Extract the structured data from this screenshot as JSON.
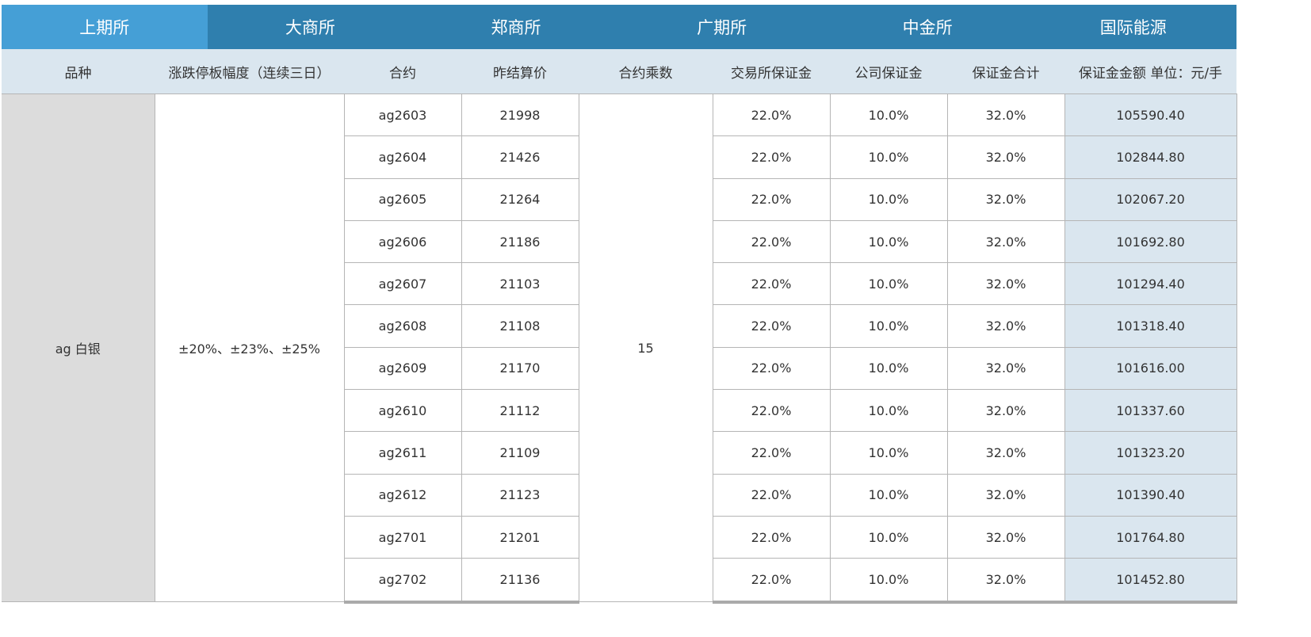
{
  "tabs": [
    {
      "label": "上期所",
      "active": true
    },
    {
      "label": "大商所",
      "active": false
    },
    {
      "label": "郑商所",
      "active": false
    },
    {
      "label": "广期所",
      "active": false
    },
    {
      "label": "中金所",
      "active": false
    },
    {
      "label": "国际能源",
      "active": false
    }
  ],
  "columns": [
    "品种",
    "涨跌停板幅度（连续三日）",
    "合约",
    "昨结算价",
    "合约乘数",
    "交易所保证金",
    "公司保证金",
    "保证金合计",
    "保证金金额 单位：元/手"
  ],
  "variety": "ag 白银",
  "limit": "±20%、±23%、±25%",
  "multiplier": "15",
  "rows": [
    {
      "contract": "ag2603",
      "settle": "21998",
      "exch": "22.0%",
      "company": "10.0%",
      "total": "32.0%",
      "amount": "105590.40"
    },
    {
      "contract": "ag2604",
      "settle": "21426",
      "exch": "22.0%",
      "company": "10.0%",
      "total": "32.0%",
      "amount": "102844.80"
    },
    {
      "contract": "ag2605",
      "settle": "21264",
      "exch": "22.0%",
      "company": "10.0%",
      "total": "32.0%",
      "amount": "102067.20"
    },
    {
      "contract": "ag2606",
      "settle": "21186",
      "exch": "22.0%",
      "company": "10.0%",
      "total": "32.0%",
      "amount": "101692.80"
    },
    {
      "contract": "ag2607",
      "settle": "21103",
      "exch": "22.0%",
      "company": "10.0%",
      "total": "32.0%",
      "amount": "101294.40"
    },
    {
      "contract": "ag2608",
      "settle": "21108",
      "exch": "22.0%",
      "company": "10.0%",
      "total": "32.0%",
      "amount": "101318.40"
    },
    {
      "contract": "ag2609",
      "settle": "21170",
      "exch": "22.0%",
      "company": "10.0%",
      "total": "32.0%",
      "amount": "101616.00"
    },
    {
      "contract": "ag2610",
      "settle": "21112",
      "exch": "22.0%",
      "company": "10.0%",
      "total": "32.0%",
      "amount": "101337.60"
    },
    {
      "contract": "ag2611",
      "settle": "21109",
      "exch": "22.0%",
      "company": "10.0%",
      "total": "32.0%",
      "amount": "101323.20"
    },
    {
      "contract": "ag2612",
      "settle": "21123",
      "exch": "22.0%",
      "company": "10.0%",
      "total": "32.0%",
      "amount": "101390.40"
    },
    {
      "contract": "ag2701",
      "settle": "21201",
      "exch": "22.0%",
      "company": "10.0%",
      "total": "32.0%",
      "amount": "101764.80"
    },
    {
      "contract": "ag2702",
      "settle": "21136",
      "exch": "22.0%",
      "company": "10.0%",
      "total": "32.0%",
      "amount": "101452.80"
    }
  ]
}
